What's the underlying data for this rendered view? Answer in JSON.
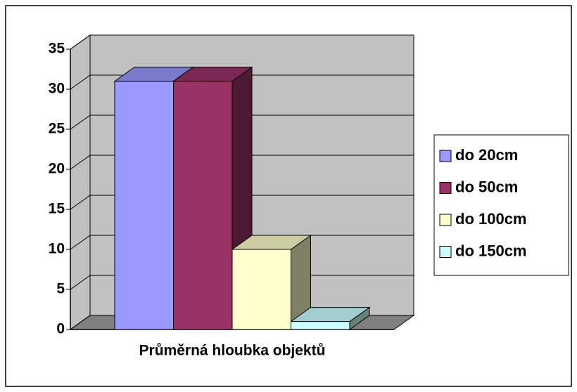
{
  "chart_data": {
    "type": "bar3d",
    "categories": [
      "Průměrná hloubka objektů"
    ],
    "series": [
      {
        "name": "do 20cm",
        "color": "#9999ff",
        "values": [
          31
        ]
      },
      {
        "name": "do 50cm",
        "color": "#993366",
        "values": [
          31
        ]
      },
      {
        "name": "do 100cm",
        "color": "#ffffcc",
        "values": [
          10
        ]
      },
      {
        "name": "do 150cm",
        "color": "#ccffff",
        "values": [
          1
        ]
      }
    ],
    "ylim": [
      0,
      35
    ],
    "yticks": [
      0,
      5,
      10,
      15,
      20,
      25,
      30,
      35
    ],
    "grid": true,
    "legend": "right"
  }
}
